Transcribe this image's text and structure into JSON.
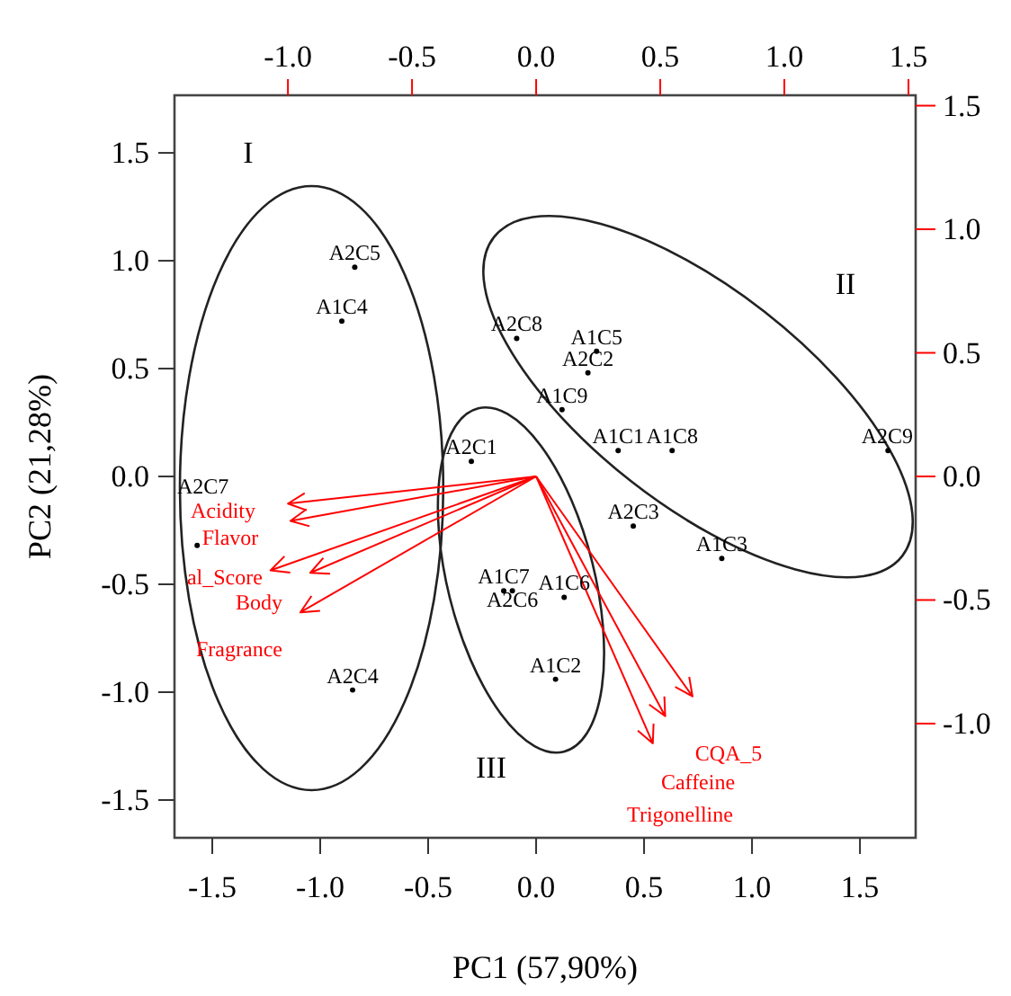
{
  "chart_data": {
    "type": "scatter",
    "xlabel": "PC1 (57,90%)",
    "ylabel": "PC2 (21,28%)",
    "xlim": [
      -1.675,
      1.758
    ],
    "ylim": [
      -1.675,
      1.767
    ],
    "xticks": [
      {
        "value": -1.5,
        "label": "-1.5"
      },
      {
        "value": -1,
        "label": "-1.0"
      },
      {
        "value": -0.5,
        "label": "-0.5"
      },
      {
        "value": 0,
        "label": "0.0"
      },
      {
        "value": 0.5,
        "label": "0.5"
      },
      {
        "value": 1,
        "label": "1.0"
      },
      {
        "value": 1.5,
        "label": "1.5"
      }
    ],
    "yticks": [
      {
        "value": -1.5,
        "label": "-1.5"
      },
      {
        "value": -1,
        "label": "-1.0"
      },
      {
        "value": -0.5,
        "label": "-0.5"
      },
      {
        "value": 0,
        "label": "0.0"
      },
      {
        "value": 0.5,
        "label": "0.5"
      },
      {
        "value": 1,
        "label": "1.0"
      },
      {
        "value": 1.5,
        "label": "1.5"
      }
    ],
    "x2lim": [
      -1.457,
      1.529
    ],
    "y2lim": [
      -1.462,
      1.542
    ],
    "x2ticks": [
      {
        "value": -1,
        "label": "-1.0"
      },
      {
        "value": -0.5,
        "label": "-0.5"
      },
      {
        "value": 0,
        "label": "0.0"
      },
      {
        "value": 0.5,
        "label": "0.5"
      },
      {
        "value": 1,
        "label": "1.0"
      },
      {
        "value": 1.5,
        "label": "1.5"
      }
    ],
    "y2ticks": [
      {
        "value": -1,
        "label": "-1.0"
      },
      {
        "value": -0.5,
        "label": "-0.5"
      },
      {
        "value": 0,
        "label": "0.0"
      },
      {
        "value": 0.5,
        "label": "0.5"
      },
      {
        "value": 1,
        "label": "1.0"
      },
      {
        "value": 1.5,
        "label": "1.5"
      }
    ],
    "grid": false,
    "series": [
      {
        "marker": "circle",
        "color": "#000000",
        "x": [
          -0.84,
          -0.9,
          -1.57,
          -0.85,
          -0.09,
          0.28,
          0.24,
          0.12,
          0.38,
          0.63,
          1.63,
          0.45,
          0.86,
          -0.3,
          -0.15,
          -0.11,
          0.13,
          0.09
        ],
        "values": [
          0.97,
          0.72,
          -0.32,
          -0.99,
          0.64,
          0.58,
          0.48,
          0.31,
          0.12,
          0.12,
          0.12,
          -0.23,
          -0.38,
          0.07,
          -0.53,
          -0.53,
          -0.56,
          -0.94
        ],
        "value_labels": [
          "A2C5",
          "A1C4",
          "A2C7",
          "A2C4",
          "A2C8",
          "A1C5",
          "A2C2",
          "A1C9",
          "A1C1",
          "A1C8",
          "A2C9",
          "A2C3",
          "A1C3",
          "A2C1",
          "A1C7",
          "A2C6",
          "A1C6",
          "A1C2"
        ]
      }
    ],
    "annotations": [
      "I",
      "II",
      "III",
      "Acidity",
      "Flavor",
      "al_Score",
      "Body",
      "Fragrance",
      "CQA_5",
      "Caffeine",
      "Trigonelline"
    ]
  }
}
